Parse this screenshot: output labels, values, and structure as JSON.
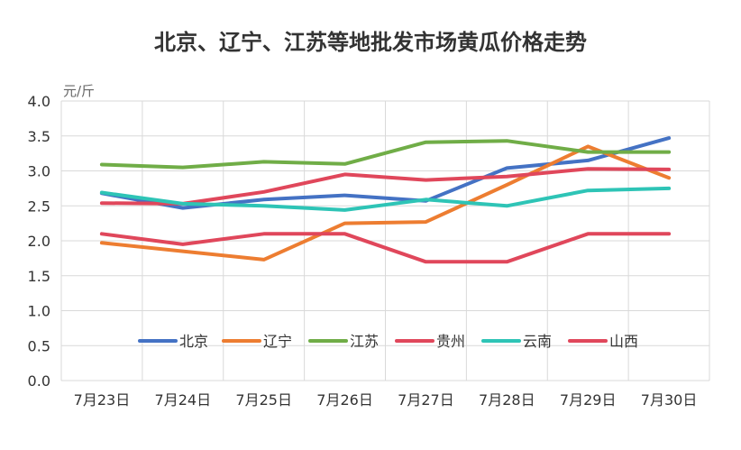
{
  "chart_data": {
    "type": "line",
    "title": "北京、辽宁、江苏等地批发市场黄瓜价格走势",
    "unit_label": "元/斤",
    "categories": [
      "7月23日",
      "7月24日",
      "7月25日",
      "7月26日",
      "7月27日",
      "7月28日",
      "7月29日",
      "7月30日"
    ],
    "ylim": [
      0,
      4
    ],
    "yticks": [
      "0.0",
      "0.5",
      "1.0",
      "1.5",
      "2.0",
      "2.5",
      "3.0",
      "3.5",
      "4.0"
    ],
    "grid": true,
    "legend_position": "inside-bottom-center",
    "series": [
      {
        "name": "北京",
        "color": "#4472C4",
        "values": [
          2.68,
          2.47,
          2.59,
          2.65,
          2.57,
          3.04,
          3.15,
          3.47
        ]
      },
      {
        "name": "辽宁",
        "color": "#ED7D31",
        "values": [
          1.97,
          1.85,
          1.73,
          2.25,
          2.27,
          2.8,
          3.35,
          2.9
        ]
      },
      {
        "name": "江苏",
        "color": "#70AD47",
        "values": [
          3.09,
          3.05,
          3.13,
          3.1,
          3.41,
          3.43,
          3.27,
          3.27
        ]
      },
      {
        "name": "贵州",
        "color": "#E0475B",
        "values": [
          2.54,
          2.53,
          2.7,
          2.95,
          2.87,
          2.92,
          3.03,
          3.02
        ]
      },
      {
        "name": "云南",
        "color": "#2EC4B6",
        "values": [
          2.69,
          2.53,
          2.5,
          2.44,
          2.59,
          2.5,
          2.72,
          2.75
        ]
      },
      {
        "name": "山西",
        "color": "#E0475B",
        "values": [
          2.1,
          1.95,
          2.1,
          2.1,
          1.7,
          1.7,
          2.1,
          2.1
        ]
      }
    ]
  }
}
